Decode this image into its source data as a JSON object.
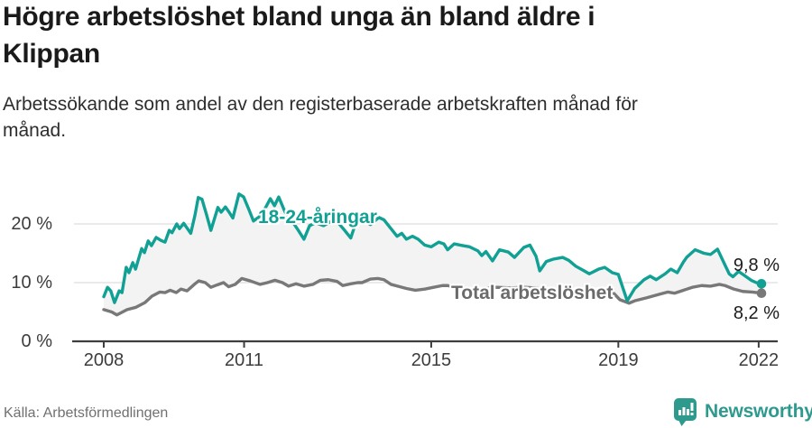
{
  "header": {
    "title": "Högre arbetslöshet bland unga än bland äldre i\nKlippan",
    "subtitle": "Arbetssökande som andel av den registerbaserade arbetskraften månad för\nmånad."
  },
  "chart_data": {
    "type": "line",
    "x_ticks": [
      2008,
      2011,
      2015,
      2019,
      2022
    ],
    "x_tick_labels": [
      "2008",
      "2011",
      "2015",
      "2019",
      "2022"
    ],
    "y_ticks": [
      0,
      10,
      20
    ],
    "y_tick_labels": [
      "0 %",
      "10 %",
      "20 %"
    ],
    "ylim": [
      0,
      27
    ],
    "xlim": [
      2008.0,
      2022.4
    ],
    "grid": true,
    "legend_position": "inline-labels",
    "fill_between_color": "#f3f3f3",
    "axis_color": "#3e3e3e",
    "gridline_color": "#e3e3e3",
    "series": [
      {
        "name": "18-24-åringar",
        "color": "#10a094",
        "end_label": "9,8 %",
        "end_value": 9.8,
        "points": [
          [
            2008.0,
            7.6
          ],
          [
            2008.08,
            9.2
          ],
          [
            2008.15,
            8.6
          ],
          [
            2008.23,
            6.6
          ],
          [
            2008.33,
            8.6
          ],
          [
            2008.39,
            8.3
          ],
          [
            2008.48,
            12.6
          ],
          [
            2008.54,
            11.7
          ],
          [
            2008.62,
            13.4
          ],
          [
            2008.68,
            12.3
          ],
          [
            2008.81,
            15.8
          ],
          [
            2008.87,
            15.1
          ],
          [
            2008.95,
            17.1
          ],
          [
            2009.02,
            16.3
          ],
          [
            2009.12,
            17.7
          ],
          [
            2009.22,
            17.2
          ],
          [
            2009.31,
            16.9
          ],
          [
            2009.4,
            18.9
          ],
          [
            2009.46,
            18.5
          ],
          [
            2009.56,
            20.0
          ],
          [
            2009.62,
            19.2
          ],
          [
            2009.71,
            20.1
          ],
          [
            2009.86,
            18.4
          ],
          [
            2009.95,
            21.5
          ],
          [
            2010.02,
            24.5
          ],
          [
            2010.1,
            24.2
          ],
          [
            2010.2,
            21.5
          ],
          [
            2010.29,
            18.9
          ],
          [
            2010.44,
            22.8
          ],
          [
            2010.51,
            22.0
          ],
          [
            2010.6,
            22.9
          ],
          [
            2010.68,
            22.0
          ],
          [
            2010.76,
            21.0
          ],
          [
            2010.89,
            25.1
          ],
          [
            2010.99,
            24.6
          ],
          [
            2011.1,
            22.5
          ],
          [
            2011.2,
            20.5
          ],
          [
            2011.32,
            21.2
          ],
          [
            2011.44,
            22.5
          ],
          [
            2011.56,
            24.3
          ],
          [
            2011.65,
            23.1
          ],
          [
            2011.74,
            24.6
          ],
          [
            2011.85,
            22.5
          ],
          [
            2011.95,
            20.8
          ],
          [
            2012.05,
            20.2
          ],
          [
            2012.16,
            18.9
          ],
          [
            2012.28,
            17.4
          ],
          [
            2012.4,
            19.7
          ],
          [
            2012.53,
            20.2
          ],
          [
            2012.63,
            19.9
          ],
          [
            2012.7,
            19.7
          ],
          [
            2012.87,
            20.5
          ],
          [
            2013.0,
            20.3
          ],
          [
            2013.14,
            19.0
          ],
          [
            2013.28,
            17.6
          ],
          [
            2013.4,
            20.5
          ],
          [
            2013.55,
            20.7
          ],
          [
            2013.7,
            19.9
          ],
          [
            2013.88,
            21.1
          ],
          [
            2013.99,
            20.7
          ],
          [
            2014.12,
            19.4
          ],
          [
            2014.27,
            17.9
          ],
          [
            2014.37,
            18.4
          ],
          [
            2014.47,
            17.4
          ],
          [
            2014.6,
            17.9
          ],
          [
            2014.72,
            17.4
          ],
          [
            2014.86,
            16.4
          ],
          [
            2015.0,
            16.1
          ],
          [
            2015.16,
            16.9
          ],
          [
            2015.27,
            16.6
          ],
          [
            2015.35,
            15.6
          ],
          [
            2015.49,
            16.6
          ],
          [
            2015.68,
            16.3
          ],
          [
            2015.82,
            16.1
          ],
          [
            2016.0,
            15.4
          ],
          [
            2016.08,
            14.6
          ],
          [
            2016.17,
            15.3
          ],
          [
            2016.31,
            13.7
          ],
          [
            2016.46,
            15.6
          ],
          [
            2016.65,
            15.2
          ],
          [
            2016.78,
            14.3
          ],
          [
            2016.98,
            16.0
          ],
          [
            2017.11,
            16.4
          ],
          [
            2017.24,
            14.5
          ],
          [
            2017.32,
            12.0
          ],
          [
            2017.46,
            13.6
          ],
          [
            2017.61,
            14.0
          ],
          [
            2017.81,
            14.3
          ],
          [
            2017.94,
            13.8
          ],
          [
            2018.09,
            12.8
          ],
          [
            2018.27,
            12.0
          ],
          [
            2018.38,
            11.5
          ],
          [
            2018.58,
            12.3
          ],
          [
            2018.71,
            12.6
          ],
          [
            2018.87,
            11.7
          ],
          [
            2019.0,
            11.4
          ],
          [
            2019.19,
            6.9
          ],
          [
            2019.35,
            9.0
          ],
          [
            2019.55,
            10.5
          ],
          [
            2019.68,
            11.1
          ],
          [
            2019.81,
            10.5
          ],
          [
            2020.0,
            11.5
          ],
          [
            2020.12,
            12.3
          ],
          [
            2020.26,
            11.7
          ],
          [
            2020.39,
            13.5
          ],
          [
            2020.46,
            14.3
          ],
          [
            2020.64,
            15.6
          ],
          [
            2020.83,
            15.0
          ],
          [
            2020.97,
            14.8
          ],
          [
            2021.12,
            15.7
          ],
          [
            2021.28,
            13.0
          ],
          [
            2021.37,
            11.5
          ],
          [
            2021.45,
            11.0
          ],
          [
            2021.57,
            11.9
          ],
          [
            2021.7,
            11.2
          ],
          [
            2021.84,
            10.4
          ],
          [
            2021.95,
            10.0
          ],
          [
            2022.06,
            9.8
          ]
        ]
      },
      {
        "name": "Total arbetslöshet",
        "color": "#787878",
        "end_label": "8,2 %",
        "end_value": 8.2,
        "points": [
          [
            2008.0,
            5.4
          ],
          [
            2008.17,
            5.0
          ],
          [
            2008.28,
            4.5
          ],
          [
            2008.5,
            5.4
          ],
          [
            2008.69,
            5.8
          ],
          [
            2008.88,
            6.6
          ],
          [
            2009.03,
            7.7
          ],
          [
            2009.2,
            8.4
          ],
          [
            2009.31,
            8.3
          ],
          [
            2009.42,
            8.7
          ],
          [
            2009.55,
            8.3
          ],
          [
            2009.65,
            8.9
          ],
          [
            2009.78,
            8.6
          ],
          [
            2009.95,
            9.8
          ],
          [
            2010.03,
            10.3
          ],
          [
            2010.17,
            10.0
          ],
          [
            2010.29,
            9.2
          ],
          [
            2010.42,
            9.6
          ],
          [
            2010.56,
            10.0
          ],
          [
            2010.67,
            9.3
          ],
          [
            2010.81,
            9.7
          ],
          [
            2010.95,
            10.7
          ],
          [
            2011.13,
            10.3
          ],
          [
            2011.34,
            9.7
          ],
          [
            2011.5,
            10.0
          ],
          [
            2011.66,
            10.4
          ],
          [
            2011.82,
            10.0
          ],
          [
            2011.95,
            9.4
          ],
          [
            2012.11,
            9.8
          ],
          [
            2012.28,
            9.4
          ],
          [
            2012.47,
            9.7
          ],
          [
            2012.63,
            10.4
          ],
          [
            2012.8,
            10.5
          ],
          [
            2012.99,
            10.2
          ],
          [
            2013.11,
            9.5
          ],
          [
            2013.28,
            9.8
          ],
          [
            2013.43,
            10.0
          ],
          [
            2013.52,
            10.0
          ],
          [
            2013.7,
            10.6
          ],
          [
            2013.86,
            10.7
          ],
          [
            2013.99,
            10.5
          ],
          [
            2014.14,
            9.7
          ],
          [
            2014.28,
            9.4
          ],
          [
            2014.47,
            9.0
          ],
          [
            2014.66,
            8.7
          ],
          [
            2014.86,
            8.9
          ],
          [
            2015.05,
            9.2
          ],
          [
            2015.24,
            9.5
          ],
          [
            2015.35,
            9.5
          ],
          [
            2015.63,
            9.0
          ],
          [
            2016.0,
            8.9
          ],
          [
            2016.4,
            9.2
          ],
          [
            2016.7,
            9.1
          ],
          [
            2017.0,
            9.2
          ],
          [
            2017.4,
            9.0
          ],
          [
            2017.8,
            8.9
          ],
          [
            2018.2,
            8.7
          ],
          [
            2018.6,
            8.6
          ],
          [
            2018.9,
            8.2
          ],
          [
            2019.03,
            7.1
          ],
          [
            2019.23,
            6.5
          ],
          [
            2019.35,
            6.9
          ],
          [
            2019.6,
            7.4
          ],
          [
            2019.87,
            8.0
          ],
          [
            2020.06,
            8.4
          ],
          [
            2020.2,
            8.2
          ],
          [
            2020.39,
            8.7
          ],
          [
            2020.58,
            9.2
          ],
          [
            2020.78,
            9.5
          ],
          [
            2020.97,
            9.4
          ],
          [
            2021.16,
            9.7
          ],
          [
            2021.28,
            9.5
          ],
          [
            2021.47,
            8.9
          ],
          [
            2021.66,
            8.5
          ],
          [
            2021.86,
            8.4
          ],
          [
            2022.06,
            8.2
          ]
        ]
      }
    ]
  },
  "footer": {
    "source": "Källa: Arbetsförmedlingen",
    "brand": "Newsworthy",
    "brand_color": "#2e9a8e"
  }
}
